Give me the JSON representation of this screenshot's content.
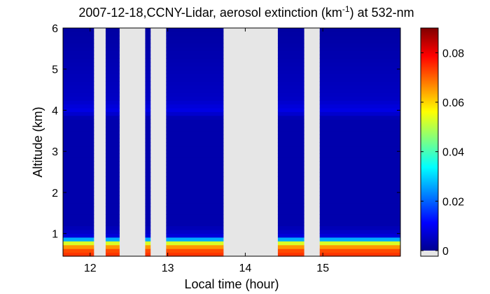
{
  "chart_data": {
    "type": "heatmap",
    "title": "2007-12-18,CCNY-Lidar, aerosol extinction (km",
    "title_superscript": "-1",
    "title_suffix": ") at 532-nm",
    "xlabel": "Local time (hour)",
    "ylabel": "Altitude (km)",
    "xlim": [
      11.65,
      16.0
    ],
    "ylim": [
      0.45,
      6.0
    ],
    "x_ticks": [
      {
        "value": 12,
        "label": "12"
      },
      {
        "value": 13,
        "label": "13"
      },
      {
        "value": 14,
        "label": "14"
      },
      {
        "value": 15,
        "label": "15"
      }
    ],
    "y_ticks": [
      {
        "value": 1,
        "label": "1"
      },
      {
        "value": 2,
        "label": "2"
      },
      {
        "value": 3,
        "label": "3"
      },
      {
        "value": 4,
        "label": "4"
      },
      {
        "value": 5,
        "label": "5"
      },
      {
        "value": 6,
        "label": "6"
      }
    ],
    "colorbar": {
      "range": [
        0,
        0.09
      ],
      "colormap": "jet",
      "ticks": [
        {
          "value": 0,
          "label": "0"
        },
        {
          "value": 0.02,
          "label": "0.02"
        },
        {
          "value": 0.04,
          "label": "0.04"
        },
        {
          "value": 0.06,
          "label": "0.06"
        },
        {
          "value": 0.08,
          "label": "0.08"
        }
      ]
    },
    "no_data_color": "#e6e6e6",
    "data_segments": [
      {
        "start": 11.65,
        "end": 12.05
      },
      {
        "start": 12.2,
        "end": 12.38
      },
      {
        "start": 12.71,
        "end": 12.78
      },
      {
        "start": 12.98,
        "end": 13.72
      },
      {
        "start": 14.42,
        "end": 14.76
      },
      {
        "start": 14.96,
        "end": 16.0
      }
    ],
    "profile": [
      {
        "alt": 0.45,
        "value": 0.075
      },
      {
        "alt": 0.6,
        "value": 0.072
      },
      {
        "alt": 0.75,
        "value": 0.06
      },
      {
        "alt": 0.85,
        "value": 0.03
      },
      {
        "alt": 0.95,
        "value": 0.008
      },
      {
        "alt": 1.2,
        "value": 0.004
      },
      {
        "alt": 3.8,
        "value": 0.004
      },
      {
        "alt": 4.0,
        "value": 0.009
      },
      {
        "alt": 4.3,
        "value": 0.006
      },
      {
        "alt": 6.0,
        "value": 0.003
      }
    ]
  }
}
